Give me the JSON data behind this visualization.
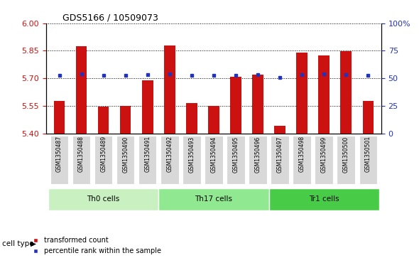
{
  "title": "GDS5166 / 10509073",
  "samples": [
    "GSM1350487",
    "GSM1350488",
    "GSM1350489",
    "GSM1350490",
    "GSM1350491",
    "GSM1350492",
    "GSM1350493",
    "GSM1350494",
    "GSM1350495",
    "GSM1350496",
    "GSM1350497",
    "GSM1350498",
    "GSM1350499",
    "GSM1350500",
    "GSM1350501"
  ],
  "red_values": [
    5.575,
    5.875,
    5.545,
    5.548,
    5.69,
    5.877,
    5.565,
    5.548,
    5.71,
    5.72,
    5.44,
    5.838,
    5.825,
    5.848,
    5.575
  ],
  "blue_values": [
    5.715,
    5.725,
    5.715,
    5.715,
    5.72,
    5.725,
    5.715,
    5.715,
    5.715,
    5.72,
    5.705,
    5.72,
    5.725,
    5.72,
    5.715
  ],
  "cell_types": [
    {
      "label": "Th0 cells",
      "start": 0,
      "end": 4,
      "color": "#c8f0c0"
    },
    {
      "label": "Th17 cells",
      "start": 5,
      "end": 9,
      "color": "#90e890"
    },
    {
      "label": "Tr1 cells",
      "start": 10,
      "end": 14,
      "color": "#48cc48"
    }
  ],
  "ylim_left": [
    5.4,
    6.0
  ],
  "ylim_right": [
    0,
    100
  ],
  "yticks_left": [
    5.4,
    5.55,
    5.7,
    5.85,
    6.0
  ],
  "yticks_right": [
    0,
    25,
    50,
    75,
    100
  ],
  "ytick_labels_right": [
    "0",
    "25",
    "50",
    "75",
    "100%"
  ],
  "bar_color": "#cc1111",
  "dot_color": "#2233bb",
  "bar_width": 0.5,
  "legend_red": "transformed count",
  "legend_blue": "percentile rank within the sample",
  "cell_type_label": "cell type"
}
